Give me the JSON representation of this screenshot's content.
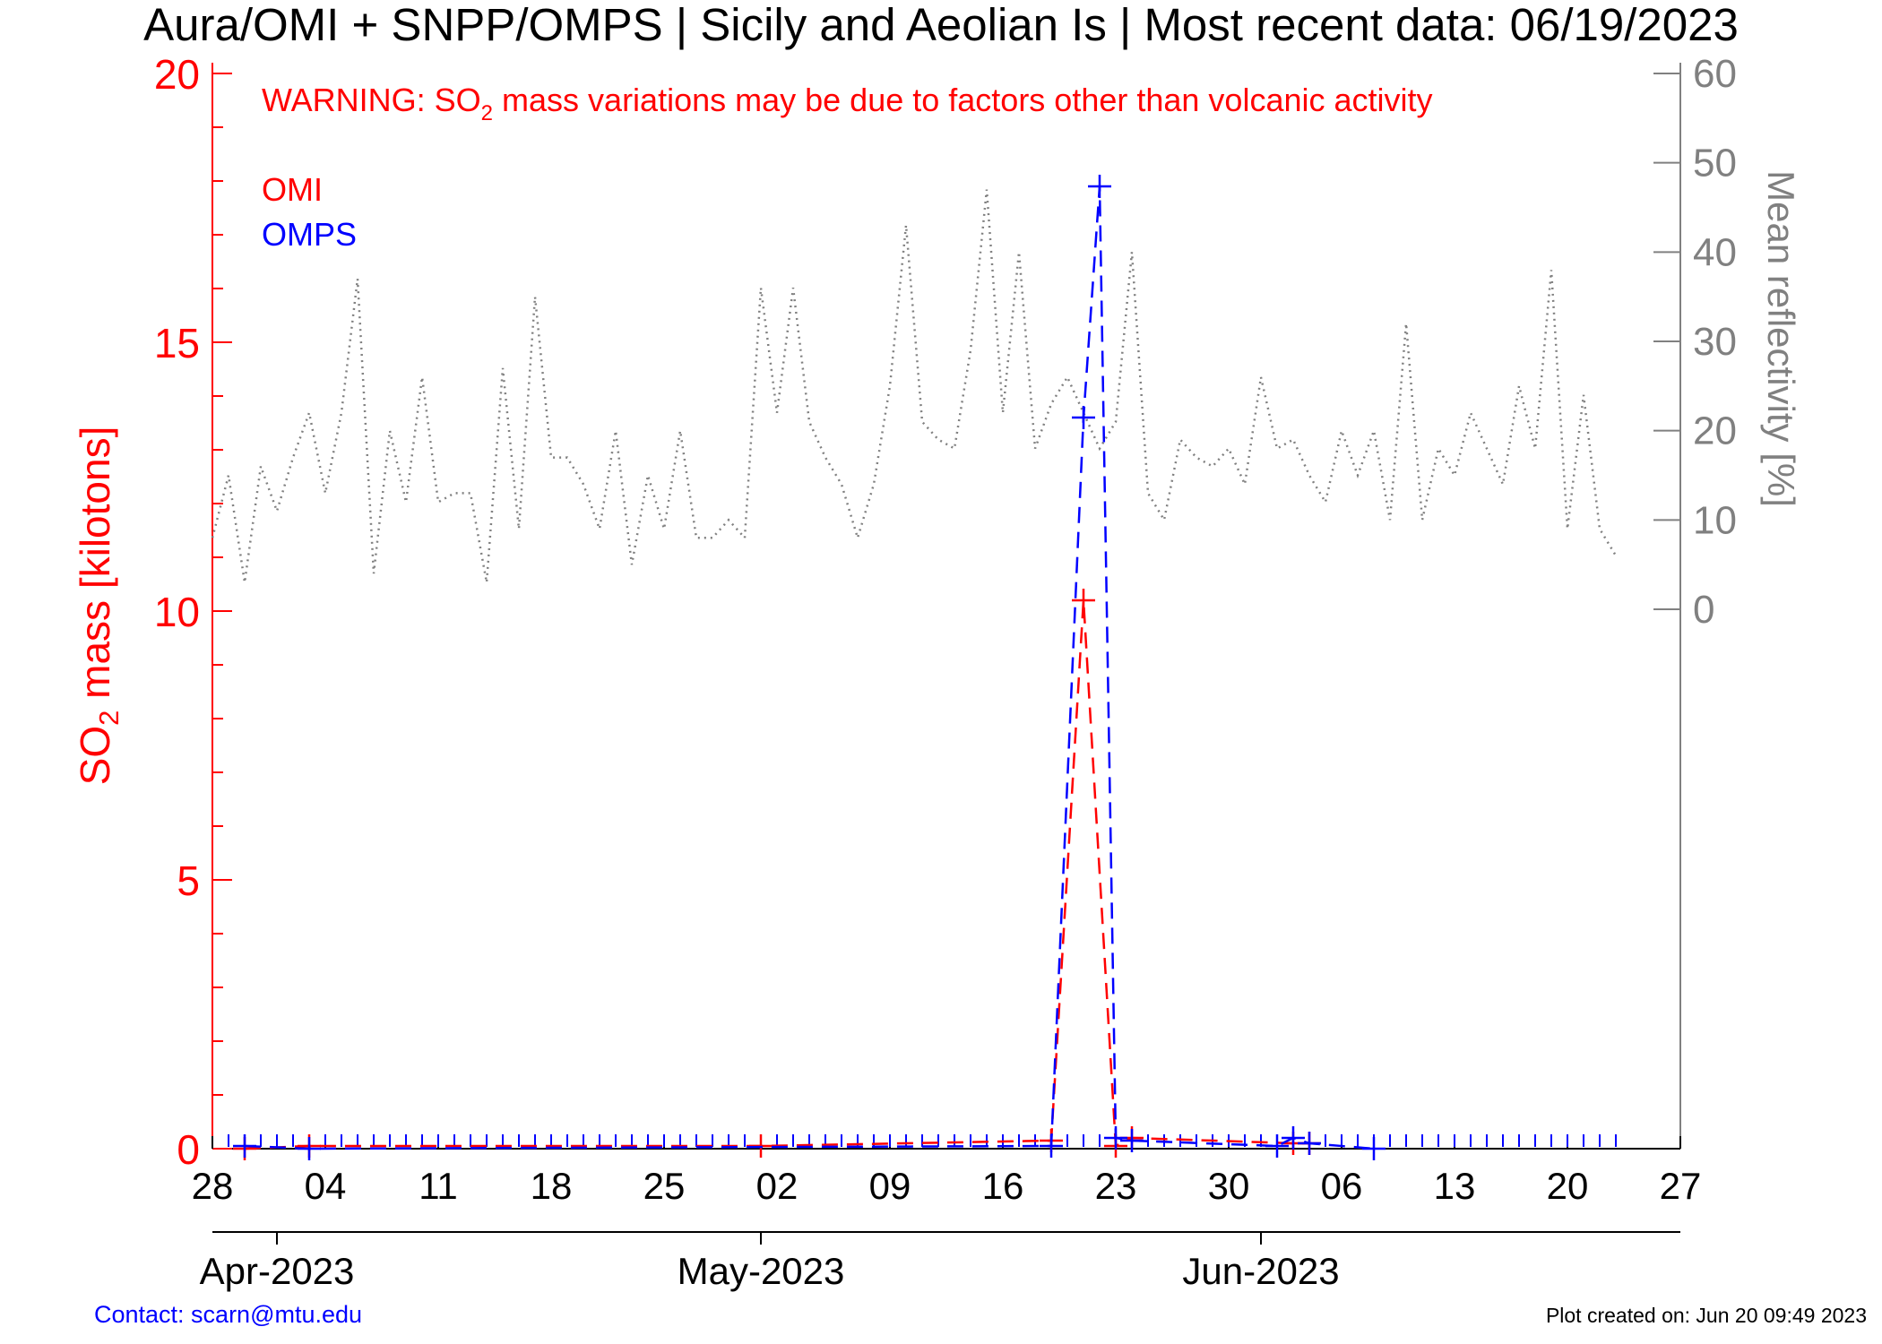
{
  "title": "Aura/OMI + SNPP/OMPS | Sicily and Aeolian Is | Most recent data: 06/19/2023",
  "warning": {
    "prefix": "WARNING: SO",
    "sub": "2",
    "suffix": " mass variations may be due to factors other than volcanic activity"
  },
  "contact": "Contact: scarn@mtu.edu",
  "created": "Plot created on: Jun 20 09:49 2023",
  "colors": {
    "omi": "#ff0000",
    "omps": "#0000ff",
    "reflectivity": "#808080",
    "axis_left": "#ff0000",
    "axis_right": "#808080",
    "text": "#000000"
  },
  "chart_data": {
    "type": "line",
    "title": "Aura/OMI + SNPP/OMPS | Sicily and Aeolian Is | Most recent data: 06/19/2023",
    "ylabel": {
      "prefix": "SO",
      "sub": "2",
      "suffix": " mass [kilotons]"
    },
    "y2label": "Mean reflectivity [%]",
    "ylim": [
      0,
      20
    ],
    "y2lim": [
      0,
      60
    ],
    "yticks": [
      "0",
      "5",
      "10",
      "15",
      "20"
    ],
    "y2ticks": [
      "0",
      "10",
      "20",
      "30",
      "40",
      "50",
      "60"
    ],
    "xlim": [
      "2023-03-28",
      "2023-06-27"
    ],
    "xtick_labels": [
      "28",
      "04",
      "11",
      "18",
      "25",
      "02",
      "09",
      "16",
      "23",
      "30",
      "06",
      "13",
      "20",
      "27"
    ],
    "xtick_dates": [
      "2023-03-28",
      "2023-04-04",
      "2023-04-11",
      "2023-04-18",
      "2023-04-25",
      "2023-05-02",
      "2023-05-09",
      "2023-05-16",
      "2023-05-23",
      "2023-05-30",
      "2023-06-06",
      "2023-06-13",
      "2023-06-20",
      "2023-06-27"
    ],
    "month_labels": [
      "Apr-2023",
      "May-2023",
      "Jun-2023"
    ],
    "month_dates": [
      "2023-04-01",
      "2023-05-01",
      "2023-06-01"
    ],
    "legend": [
      "OMI",
      "OMPS"
    ],
    "series": [
      {
        "name": "OMI",
        "x": [
          "2023-03-30",
          "2023-04-03",
          "2023-05-01",
          "2023-05-19",
          "2023-05-21",
          "2023-05-23",
          "2023-05-24",
          "2023-06-03",
          "2023-06-04"
        ],
        "values": [
          0.0,
          0.05,
          0.05,
          0.15,
          10.2,
          0.05,
          0.2,
          0.1,
          0.1
        ]
      },
      {
        "name": "OMPS",
        "x": [
          "2023-03-30",
          "2023-04-03",
          "2023-05-19",
          "2023-05-21",
          "2023-05-22",
          "2023-05-23",
          "2023-05-24",
          "2023-06-02",
          "2023-06-03",
          "2023-06-04",
          "2023-06-08"
        ],
        "values": [
          0.05,
          0.0,
          0.05,
          13.6,
          17.9,
          0.2,
          0.15,
          0.05,
          0.2,
          0.1,
          0.0
        ]
      },
      {
        "name": "Mean reflectivity",
        "axis": "right",
        "start_date": "2023-03-28",
        "values": [
          8,
          15,
          3,
          16,
          11,
          17,
          22,
          13,
          22,
          37,
          4,
          20,
          12,
          26,
          12,
          13,
          13,
          3,
          27,
          9,
          35,
          17,
          17,
          14,
          9,
          20,
          5,
          15,
          9,
          20,
          8,
          8,
          10,
          8,
          36,
          22,
          36,
          21,
          17,
          14,
          8,
          14,
          25,
          43,
          21,
          19,
          18,
          29,
          47,
          22,
          40,
          18,
          23,
          26,
          22,
          18,
          21,
          40,
          13,
          10,
          19,
          17,
          16,
          18,
          14,
          26,
          18,
          19,
          15,
          12,
          20,
          15,
          20,
          10,
          32,
          10,
          18,
          15,
          22,
          18,
          14,
          25,
          18,
          38,
          9,
          24,
          9,
          6
        ]
      }
    ]
  }
}
